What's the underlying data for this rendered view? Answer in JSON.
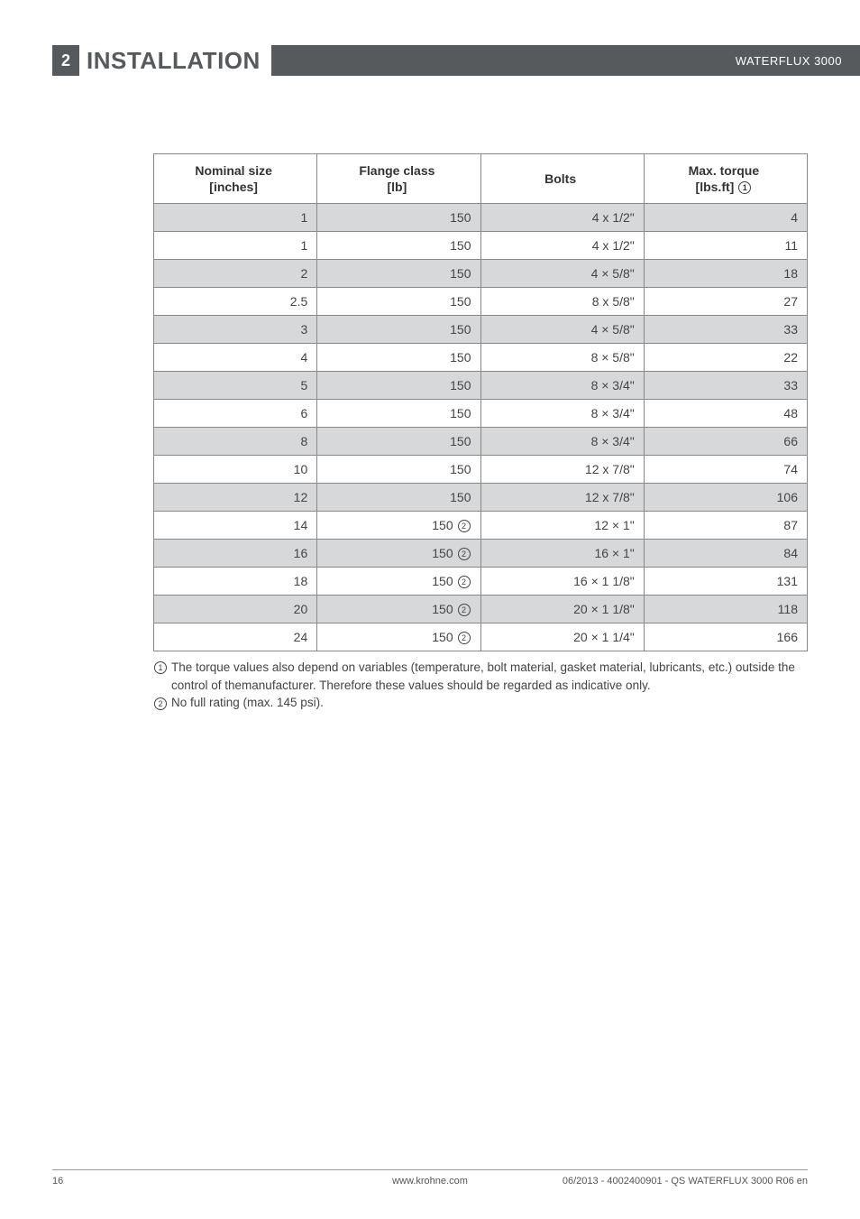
{
  "header": {
    "section_number": "2",
    "section_title": "INSTALLATION",
    "product": "WATERFLUX 3000"
  },
  "table": {
    "columns": [
      {
        "label_line1": "Nominal size",
        "label_line2": "[inches]"
      },
      {
        "label_line1": "Flange class",
        "label_line2": "[lb]"
      },
      {
        "label_line1": "Bolts",
        "label_line2": ""
      },
      {
        "label_line1": "Max. torque",
        "label_line2": "[lbs.ft]",
        "note_ref": "1"
      }
    ],
    "rows": [
      {
        "shade": true,
        "size": "1",
        "flange": "150",
        "flange_note": "",
        "bolts": "4 x 1/2\"",
        "torque": "4"
      },
      {
        "shade": false,
        "size": "1",
        "flange": "150",
        "flange_note": "",
        "bolts": "4 x 1/2\"",
        "torque": "11"
      },
      {
        "shade": true,
        "size": "2",
        "flange": "150",
        "flange_note": "",
        "bolts": "4 × 5/8\"",
        "torque": "18"
      },
      {
        "shade": false,
        "size": "2.5",
        "flange": "150",
        "flange_note": "",
        "bolts": "8 x 5/8\"",
        "torque": "27"
      },
      {
        "shade": true,
        "size": "3",
        "flange": "150",
        "flange_note": "",
        "bolts": "4 × 5/8\"",
        "torque": "33"
      },
      {
        "shade": false,
        "size": "4",
        "flange": "150",
        "flange_note": "",
        "bolts": "8 × 5/8\"",
        "torque": "22"
      },
      {
        "shade": true,
        "size": "5",
        "flange": "150",
        "flange_note": "",
        "bolts": "8 × 3/4\"",
        "torque": "33"
      },
      {
        "shade": false,
        "size": "6",
        "flange": "150",
        "flange_note": "",
        "bolts": "8 × 3/4\"",
        "torque": "48"
      },
      {
        "shade": true,
        "size": "8",
        "flange": "150",
        "flange_note": "",
        "bolts": "8 × 3/4\"",
        "torque": "66"
      },
      {
        "shade": false,
        "size": "10",
        "flange": "150",
        "flange_note": "",
        "bolts": "12 x 7/8\"",
        "torque": "74"
      },
      {
        "shade": true,
        "size": "12",
        "flange": "150",
        "flange_note": "",
        "bolts": "12 x 7/8\"",
        "torque": "106"
      },
      {
        "shade": false,
        "size": "14",
        "flange": "150 ",
        "flange_note": "2",
        "bolts": "12 × 1\"",
        "torque": "87"
      },
      {
        "shade": true,
        "size": "16",
        "flange": "150 ",
        "flange_note": "2",
        "bolts": "16 × 1\"",
        "torque": "84"
      },
      {
        "shade": false,
        "size": "18",
        "flange": "150 ",
        "flange_note": "2",
        "bolts": "16 × 1 1/8\"",
        "torque": "131"
      },
      {
        "shade": true,
        "size": "20",
        "flange": "150 ",
        "flange_note": "2",
        "bolts": "20 × 1 1/8\"",
        "torque": "118"
      },
      {
        "shade": false,
        "size": "24",
        "flange": "150 ",
        "flange_note": "2",
        "bolts": "20 × 1 1/4\"",
        "torque": "166"
      }
    ]
  },
  "footnotes": [
    {
      "ref": "1",
      "text": "The torque values also depend on variables (temperature, bolt material, gasket material, lubricants, etc.) outside the control of themanufacturer. Therefore these values should be regarded as indicative only."
    },
    {
      "ref": "2",
      "text": "No full rating (max. 145 psi)."
    }
  ],
  "footer": {
    "page_number": "16",
    "website": "www.krohne.com",
    "doc_id": "06/2013 - 4002400901 - QS WATERFLUX 3000 R06 en"
  }
}
